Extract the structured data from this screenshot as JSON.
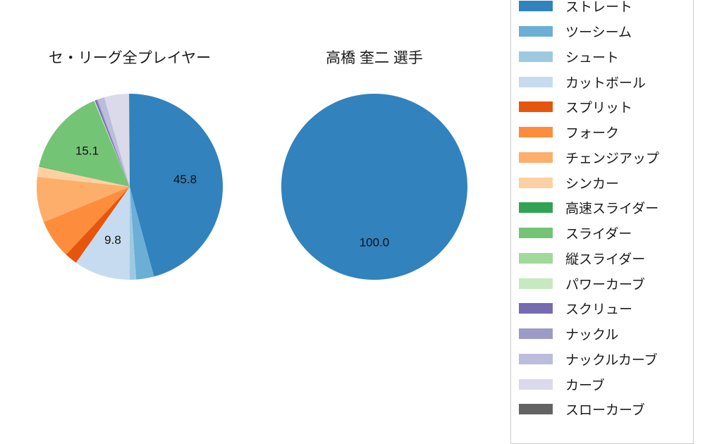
{
  "chart_data": {
    "type": "pie",
    "title": "",
    "start_angle": "top",
    "direction": "clockwise",
    "label_distance": 0.6,
    "categories": [
      "ストレート",
      "ツーシーム",
      "シュート",
      "カットボール",
      "スプリット",
      "フォーク",
      "チェンジアップ",
      "シンカー",
      "高速スライダー",
      "スライダー",
      "縦スライダー",
      "パワーカーブ",
      "スクリュー",
      "ナックル",
      "ナックルカーブ",
      "カーブ",
      "スローカーブ"
    ],
    "colors": [
      "#3182bd",
      "#6baed6",
      "#9ecae1",
      "#c6dbef",
      "#e6550d",
      "#fd8d3c",
      "#fdae6b",
      "#fdd0a2",
      "#31a354",
      "#74c476",
      "#a1d99b",
      "#c7e9c0",
      "#756bb1",
      "#9e9ac8",
      "#bcbddc",
      "#dadaeb",
      "#636363"
    ],
    "series": [
      {
        "name": "セ・リーグ全プレイヤー",
        "values": [
          45.8,
          3.1,
          1.1,
          9.8,
          2.2,
          6.8,
          7.9,
          1.8,
          0.1,
          15.1,
          0.1,
          0.1,
          0.3,
          0.2,
          1.2,
          4.3,
          0.1
        ],
        "pct_labels": [
          "45.8",
          null,
          null,
          "9.8",
          null,
          null,
          null,
          null,
          null,
          "15.1",
          null,
          null,
          null,
          null,
          null,
          null,
          null
        ]
      },
      {
        "name": "高橋 奎二 選手",
        "values": [
          100.0,
          0,
          0,
          0,
          0,
          0,
          0,
          0,
          0,
          0,
          0,
          0,
          0,
          0,
          0,
          0,
          0
        ],
        "pct_labels": [
          "100.0",
          null,
          null,
          null,
          null,
          null,
          null,
          null,
          null,
          null,
          null,
          null,
          null,
          null,
          null,
          null,
          null
        ]
      }
    ],
    "legend_position": "right"
  },
  "legend": {
    "frame_color": "#cccccc",
    "text_color": "#1a1a1a"
  }
}
